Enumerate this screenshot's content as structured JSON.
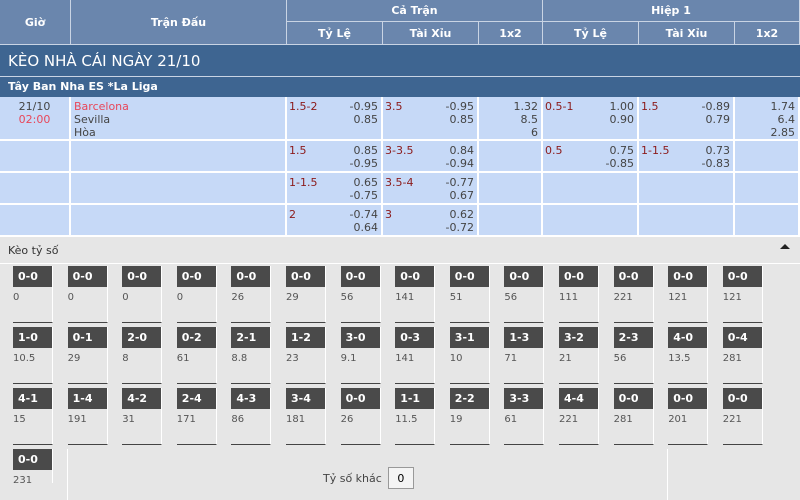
{
  "header": {
    "gio": "Giờ",
    "tran_dau": "Trận Đấu",
    "ca_tran": "Cả Trận",
    "hiep1": "Hiệp 1",
    "ty_le": "Tỷ Lệ",
    "tai_xiu": "Tài Xỉu",
    "x12": "1x2"
  },
  "title": "KÈO NHÀ CÁI NGÀY 21/10",
  "league": "Tây Ban Nha ES *La Liga",
  "match": {
    "date": "21/10",
    "time": "02:00",
    "home": "Barcelona",
    "away": "Sevilla",
    "draw": "Hòa"
  },
  "rows": [
    {
      "ft_hdp": "1.5-2",
      "ft_hdp_o": [
        "-0.95",
        "0.85"
      ],
      "ft_ou": "3.5",
      "ft_ou_o": [
        "-0.95",
        "0.85"
      ],
      "ft_1x2": [
        "1.32",
        "8.5",
        "6"
      ],
      "h1_hdp": "0.5-1",
      "h1_hdp_o": [
        "1.00",
        "0.90"
      ],
      "h1_ou": "1.5",
      "h1_ou_o": [
        "-0.89",
        "0.79"
      ],
      "h1_1x2": [
        "1.74",
        "6.4",
        "2.85"
      ]
    },
    {
      "ft_hdp": "1.5",
      "ft_hdp_o": [
        "0.85",
        "-0.95"
      ],
      "ft_ou": "3-3.5",
      "ft_ou_o": [
        "0.84",
        "-0.94"
      ],
      "ft_1x2": [],
      "h1_hdp": "0.5",
      "h1_hdp_o": [
        "0.75",
        "-0.85"
      ],
      "h1_ou": "1-1.5",
      "h1_ou_o": [
        "0.73",
        "-0.83"
      ],
      "h1_1x2": []
    },
    {
      "ft_hdp": "1-1.5",
      "ft_hdp_o": [
        "0.65",
        "-0.75"
      ],
      "ft_ou": "3.5-4",
      "ft_ou_o": [
        "-0.77",
        "0.67"
      ],
      "ft_1x2": [],
      "h1_hdp": "",
      "h1_hdp_o": [],
      "h1_ou": "",
      "h1_ou_o": [],
      "h1_1x2": []
    },
    {
      "ft_hdp": "2",
      "ft_hdp_o": [
        "-0.74",
        "0.64"
      ],
      "ft_ou": "3",
      "ft_ou_o": [
        "0.62",
        "-0.72"
      ],
      "ft_1x2": [],
      "h1_hdp": "",
      "h1_hdp_o": [],
      "h1_ou": "",
      "h1_ou_o": [],
      "h1_1x2": []
    }
  ],
  "correct_score": {
    "title": "Kèo tỷ số",
    "other_label": "Tỷ số khác",
    "other_value": "0",
    "items": [
      [
        "0-0",
        "0"
      ],
      [
        "0-0",
        "0"
      ],
      [
        "0-0",
        "0"
      ],
      [
        "0-0",
        "0"
      ],
      [
        "0-0",
        "26"
      ],
      [
        "0-0",
        "29"
      ],
      [
        "0-0",
        "56"
      ],
      [
        "0-0",
        "141"
      ],
      [
        "0-0",
        "51"
      ],
      [
        "0-0",
        "56"
      ],
      [
        "0-0",
        "111"
      ],
      [
        "0-0",
        "221"
      ],
      [
        "0-0",
        "121"
      ],
      [
        "0-0",
        "121"
      ],
      [
        "1-0",
        "10.5"
      ],
      [
        "0-1",
        "29"
      ],
      [
        "2-0",
        "8"
      ],
      [
        "0-2",
        "61"
      ],
      [
        "2-1",
        "8.8"
      ],
      [
        "1-2",
        "23"
      ],
      [
        "3-0",
        "9.1"
      ],
      [
        "0-3",
        "141"
      ],
      [
        "3-1",
        "10"
      ],
      [
        "1-3",
        "71"
      ],
      [
        "3-2",
        "21"
      ],
      [
        "2-3",
        "56"
      ],
      [
        "4-0",
        "13.5"
      ],
      [
        "0-4",
        "281"
      ],
      [
        "4-1",
        "15"
      ],
      [
        "1-4",
        "191"
      ],
      [
        "4-2",
        "31"
      ],
      [
        "2-4",
        "171"
      ],
      [
        "4-3",
        "86"
      ],
      [
        "3-4",
        "181"
      ],
      [
        "0-0",
        "26"
      ],
      [
        "1-1",
        "11.5"
      ],
      [
        "2-2",
        "19"
      ],
      [
        "3-3",
        "61"
      ],
      [
        "4-4",
        "221"
      ],
      [
        "0-0",
        "281"
      ],
      [
        "0-0",
        "201"
      ],
      [
        "0-0",
        "221"
      ],
      [
        "0-0",
        "231"
      ]
    ]
  },
  "colors": {
    "header": "#6a86ad",
    "title_bg": "#3e6591",
    "cell": "#c6d9f7",
    "line_red": "#8b1a1a",
    "home_red": "#e8475a",
    "score_label": "#4a4a4a"
  }
}
